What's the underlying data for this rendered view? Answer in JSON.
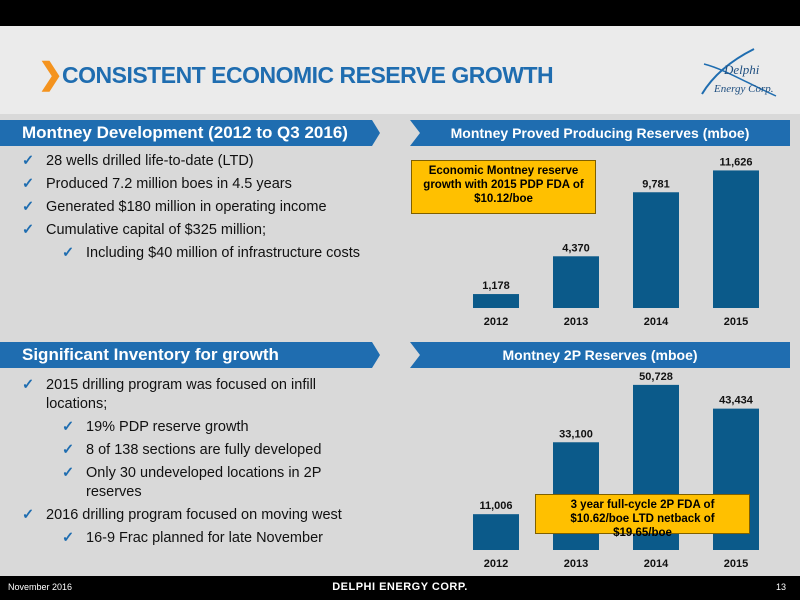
{
  "header": {
    "title": "CONSISTENT ECONOMIC RESERVE GROWTH"
  },
  "logo": {
    "line1": "Delphi",
    "line2": "Energy Corp."
  },
  "section1": {
    "heading": "Montney Development (2012 to Q3 2016)",
    "bullets": [
      {
        "text": "28 wells drilled life-to-date (LTD)",
        "level": 0
      },
      {
        "text": "Produced 7.2 million boes in 4.5 years",
        "level": 0
      },
      {
        "text": "Generated $180 million in operating income",
        "level": 0
      },
      {
        "text": "Cumulative capital of $325 million;",
        "level": 0
      },
      {
        "text": "Including $40 million of infrastructure costs",
        "level": 1
      }
    ]
  },
  "section2": {
    "heading": "Significant Inventory for growth",
    "bullets": [
      {
        "text": "2015 drilling program was focused on infill locations;",
        "level": 0
      },
      {
        "text": "19% PDP reserve growth",
        "level": 1
      },
      {
        "text": "8 of 138 sections are fully developed",
        "level": 1
      },
      {
        "text": "Only 30 undeveloped locations in 2P reserves",
        "level": 1
      },
      {
        "text": "2016 drilling program focused on moving west",
        "level": 0
      },
      {
        "text": "16-9 Frac planned for late November",
        "level": 1
      }
    ]
  },
  "chart_data": [
    {
      "type": "bar",
      "title": "Montney Proved Producing Reserves (mboe)",
      "categories": [
        "2012",
        "2013",
        "2014",
        "2015"
      ],
      "values": [
        1178,
        4370,
        9781,
        11626
      ],
      "value_labels": [
        "1,178",
        "4,370",
        "9,781",
        "11,626"
      ],
      "ylim": [
        0,
        12000
      ],
      "grid": false,
      "annotation": "Economic Montney reserve growth with 2015 PDP FDA of $10.12/boe",
      "bar_color": "#0b5a8a"
    },
    {
      "type": "bar",
      "title": "Montney 2P Reserves (mboe)",
      "categories": [
        "2012",
        "2013",
        "2014",
        "2015"
      ],
      "values": [
        11006,
        33100,
        50728,
        43434
      ],
      "value_labels": [
        "11,006",
        "33,100",
        "50,728",
        "43,434"
      ],
      "ylim": [
        0,
        51000
      ],
      "grid": false,
      "annotation": "3 year full-cycle 2P FDA of $10.62/boe LTD netback of $19.65/boe",
      "bar_color": "#0b5a8a"
    }
  ],
  "footer": {
    "date": "November 2016",
    "company": "DELPHI ENERGY CORP.",
    "page": "13"
  },
  "colors": {
    "accent": "#1f6db0",
    "highlight": "#ffc000",
    "chevron": "#f4931e"
  }
}
